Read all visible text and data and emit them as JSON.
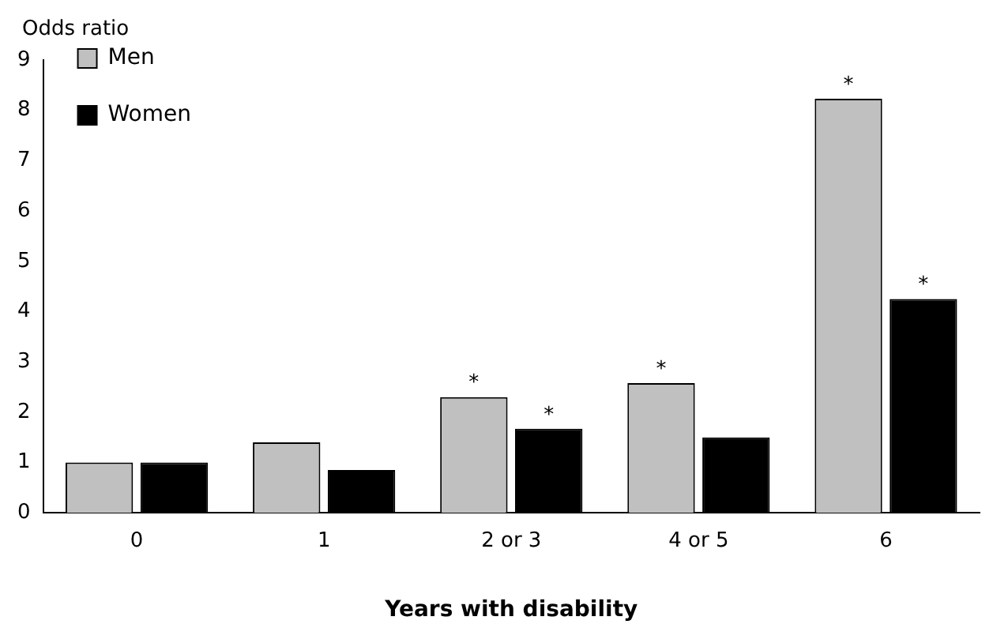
{
  "chart_data": {
    "type": "bar",
    "ylabel": "Odds ratio",
    "xlabel": "Years with disability",
    "categories": [
      "0",
      "1",
      "2 or 3",
      "4 or 5",
      "6"
    ],
    "series": [
      {
        "name": "Men",
        "color": "#c0c0c0",
        "values": [
          1.0,
          1.4,
          2.3,
          2.58,
          8.23
        ]
      },
      {
        "name": "Women",
        "color": "#000000",
        "values": [
          1.0,
          0.85,
          1.67,
          1.5,
          4.25
        ]
      }
    ],
    "ylim": [
      0,
      9
    ],
    "yticks": [
      0,
      1,
      2,
      3,
      4,
      5,
      6,
      7,
      8,
      9
    ],
    "grid": false,
    "legend": "top left",
    "annotations": [
      {
        "text": "*",
        "x": "2 or 3",
        "y": 2.3
      },
      {
        "text": "*",
        "x": "2 or 3",
        "y": 1.67
      },
      {
        "text": "*",
        "x": "4 or 5",
        "y": 2.58
      },
      {
        "text": "*",
        "x": "6",
        "y": 8.23
      },
      {
        "text": "*",
        "x": "6",
        "y": 4.25
      }
    ]
  }
}
